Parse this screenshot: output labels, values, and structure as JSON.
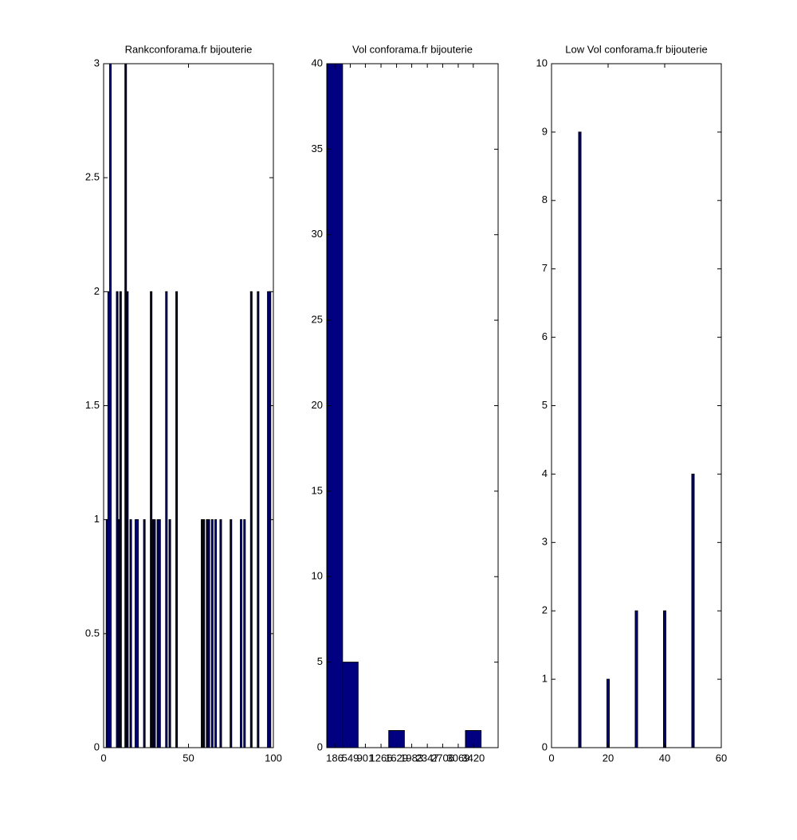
{
  "chart_data": [
    {
      "type": "bar",
      "title": "Rankconforama.fr bijouterie",
      "x": [
        2,
        3,
        4,
        8,
        9,
        10,
        13,
        14,
        16,
        19,
        20,
        24,
        28,
        29,
        30,
        32,
        33,
        37,
        39,
        43,
        58,
        59,
        61,
        62,
        64,
        66,
        69,
        75,
        81,
        83,
        87,
        91,
        97,
        98
      ],
      "values": [
        1,
        2,
        3,
        2,
        1,
        2,
        3,
        2,
        1,
        1,
        1,
        1,
        2,
        1,
        1,
        1,
        1,
        2,
        1,
        2,
        1,
        1,
        1,
        1,
        1,
        1,
        1,
        1,
        1,
        1,
        2,
        2,
        2,
        2
      ],
      "color": "#000080",
      "xlim": [
        0,
        100
      ],
      "xticks": [
        0,
        50,
        100
      ],
      "ylim": [
        0,
        3
      ],
      "yticks": [
        0,
        0.5,
        1,
        1.5,
        2,
        2.5,
        3
      ]
    },
    {
      "type": "bar",
      "title": "Vol conforama.fr bijouterie",
      "x": [
        186,
        549,
        901,
        1266,
        1629,
        1983,
        2347,
        2706,
        3069,
        3420
      ],
      "values": [
        40,
        5,
        0,
        0,
        1,
        0,
        0,
        0,
        0,
        1
      ],
      "color": "#000080",
      "xlim": [
        0,
        4000
      ],
      "xticks": [
        186,
        549,
        901,
        1266,
        1629,
        1983,
        2347,
        2706,
        3069,
        3420
      ],
      "ylim": [
        0,
        40
      ],
      "yticks": [
        0,
        5,
        10,
        15,
        20,
        25,
        30,
        35,
        40
      ]
    },
    {
      "type": "bar",
      "title": "Low Vol conforama.fr bijouterie",
      "x": [
        10,
        20,
        30,
        40,
        50
      ],
      "values": [
        9,
        1,
        2,
        2,
        4
      ],
      "color": "#000080",
      "xlim": [
        0,
        60
      ],
      "xticks": [
        0,
        20,
        40,
        60
      ],
      "ylim": [
        0,
        10
      ],
      "yticks": [
        0,
        1,
        2,
        3,
        4,
        5,
        6,
        7,
        8,
        9,
        10
      ]
    }
  ]
}
